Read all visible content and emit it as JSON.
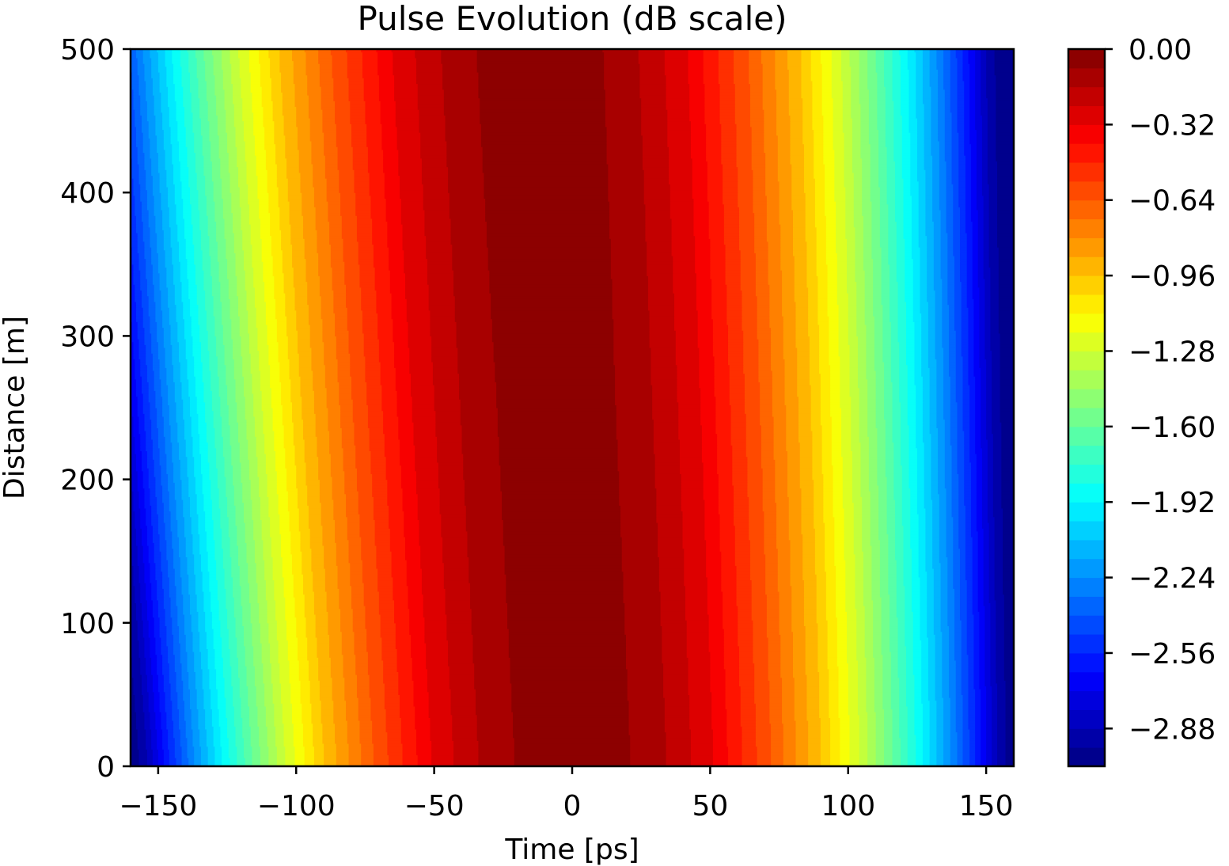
{
  "chart_data": {
    "type": "heatmap",
    "subtype": "filled-contour",
    "title": "Pulse Evolution (dB scale)",
    "xlabel": "Time [ps]",
    "ylabel": "Distance [m]",
    "xlim": [
      -160,
      160
    ],
    "ylim": [
      0,
      500
    ],
    "x_ticks": [
      -150,
      -100,
      -50,
      0,
      50,
      100,
      150
    ],
    "x_tick_labels": [
      "−150",
      "−100",
      "−50",
      "0",
      "50",
      "100",
      "150"
    ],
    "y_ticks": [
      0,
      100,
      200,
      300,
      400,
      500
    ],
    "y_tick_labels": [
      "0",
      "100",
      "200",
      "300",
      "400",
      "500"
    ],
    "colormap": "jet",
    "colorbar": {
      "min": -3.04,
      "max": 0.0,
      "levels": 38,
      "ticks": [
        0.0,
        -0.32,
        -0.64,
        -0.96,
        -1.28,
        -1.6,
        -1.92,
        -2.24,
        -2.56,
        -2.88
      ],
      "tick_labels": [
        "0.00",
        "−0.32",
        "−0.64",
        "−0.96",
        "−1.28",
        "−1.60",
        "−1.92",
        "−2.24",
        "−2.56",
        "−2.88"
      ]
    },
    "field": {
      "description_values": "dB relative to peak; Gaussian-like pulse centered at 0 ps",
      "level_boundaries_at_z0": [
        {
          "level_db": -0.08,
          "time_ps": 21
        },
        {
          "level_db": -0.16,
          "time_ps": 34
        },
        {
          "level_db": -0.24,
          "time_ps": 43
        },
        {
          "level_db": -0.32,
          "time_ps": 51
        },
        {
          "level_db": -0.64,
          "time_ps": 72
        },
        {
          "level_db": -0.96,
          "time_ps": 90
        },
        {
          "level_db": -1.28,
          "time_ps": 104
        },
        {
          "level_db": -1.6,
          "time_ps": 116
        },
        {
          "level_db": -1.92,
          "time_ps": 127
        },
        {
          "level_db": -2.24,
          "time_ps": 137
        },
        {
          "level_db": -2.56,
          "time_ps": 146
        },
        {
          "level_db": -2.88,
          "time_ps": 154
        },
        {
          "level_db": -3.04,
          "time_ps": 160
        }
      ],
      "top_level_region": {
        "level_db": 0.0,
        "appears_at_distance_m": 272,
        "half_width_at_500m_ps": 24
      }
    }
  }
}
